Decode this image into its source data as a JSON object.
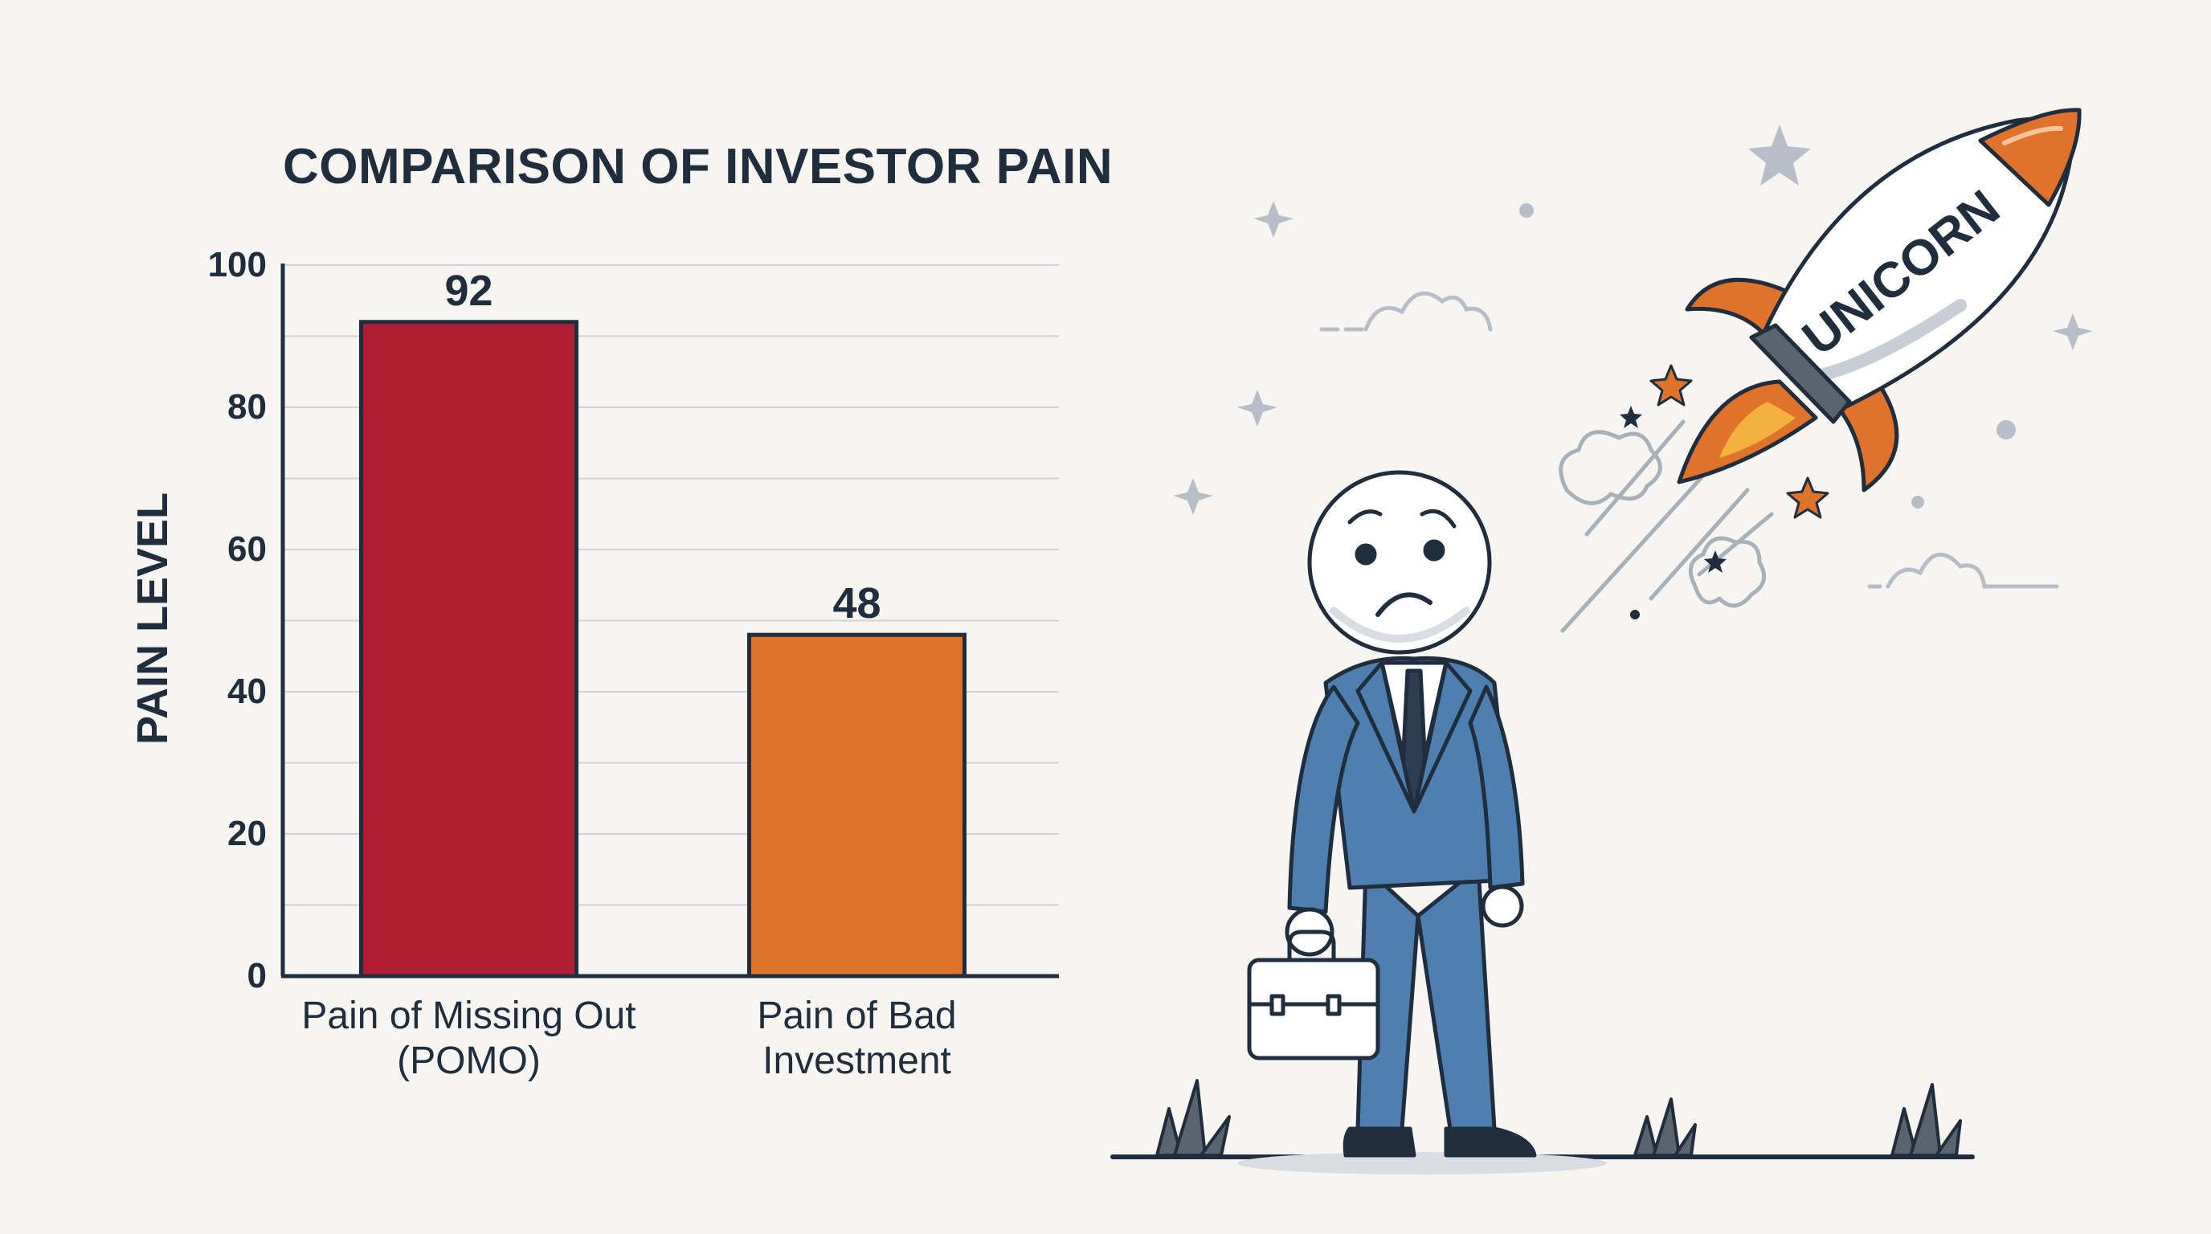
{
  "chart_data": {
    "type": "bar",
    "title": "COMPARISON OF INVESTOR PAIN",
    "ylabel": "PAIN LEVEL",
    "xlabel": "",
    "ylim": [
      0,
      100
    ],
    "yticks": [
      "0",
      "20",
      "40",
      "60",
      "80",
      "100"
    ],
    "grid": true,
    "categories": [
      [
        "Pain of Missing Out",
        "(POMO)"
      ],
      [
        "Pain of Bad",
        "Investment"
      ]
    ],
    "values": [
      92,
      48
    ],
    "colors": [
      "#b01e33",
      "#de742b"
    ]
  },
  "illustration": {
    "rocket_label": "UNICORN",
    "suit_color": "#4f7fae",
    "rocket_flame_color": "#e0732b"
  }
}
